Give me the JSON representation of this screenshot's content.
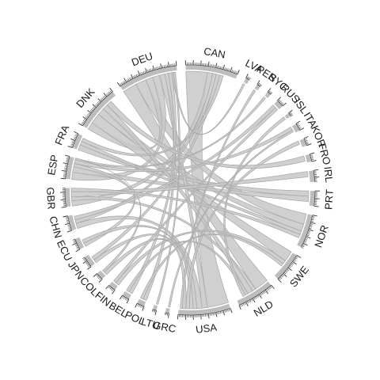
{
  "chart_data": {
    "type": "chord",
    "title": "",
    "colors": {
      "ribbon": "#c8c8c8",
      "ribbon_stroke": "#a6a6a6",
      "sector": "#bdbdbd",
      "tick": "#333333"
    },
    "nodes": [
      {
        "name": "CAN",
        "size": 14
      },
      {
        "name": "LVA",
        "size": 1
      },
      {
        "name": "PER",
        "size": 1
      },
      {
        "name": "SYC",
        "size": 1
      },
      {
        "name": "RUS",
        "size": 2
      },
      {
        "name": "ISL",
        "size": 1
      },
      {
        "name": "ITA",
        "size": 2
      },
      {
        "name": "KOR",
        "size": 2
      },
      {
        "name": "FRO",
        "size": 2
      },
      {
        "name": "IRL",
        "size": 3
      },
      {
        "name": "PRT",
        "size": 4
      },
      {
        "name": "NOR",
        "size": 9
      },
      {
        "name": "SWE",
        "size": 8
      },
      {
        "name": "NLD",
        "size": 10
      },
      {
        "name": "USA",
        "size": 14
      },
      {
        "name": "GRC",
        "size": 1
      },
      {
        "name": "LTU",
        "size": 1
      },
      {
        "name": "POL",
        "size": 2
      },
      {
        "name": "BEL",
        "size": 2
      },
      {
        "name": "FIN",
        "size": 2
      },
      {
        "name": "COL",
        "size": 2
      },
      {
        "name": "JPN",
        "size": 3
      },
      {
        "name": "ECU",
        "size": 3
      },
      {
        "name": "CHN",
        "size": 4
      },
      {
        "name": "GBR",
        "size": 5
      },
      {
        "name": "ESP",
        "size": 6
      },
      {
        "name": "FRA",
        "size": 4
      },
      {
        "name": "DNK",
        "size": 12
      },
      {
        "name": "DEU",
        "size": 16
      }
    ],
    "links": [
      {
        "source": "CAN",
        "target": "USA",
        "value": 6
      },
      {
        "source": "DEU",
        "target": "NLD",
        "value": 4
      },
      {
        "source": "DEU",
        "target": "NOR",
        "value": 3
      },
      {
        "source": "DEU",
        "target": "DNK",
        "value": 2
      },
      {
        "source": "DNK",
        "target": "SWE",
        "value": 3
      },
      {
        "source": "DNK",
        "target": "NOR",
        "value": 2
      },
      {
        "source": "DEU",
        "target": "ESP",
        "value": 2
      },
      {
        "source": "FRA",
        "target": "PRT",
        "value": 1.5
      },
      {
        "source": "ESP",
        "target": "PRT",
        "value": 1.5
      },
      {
        "source": "CAN",
        "target": "GBR",
        "value": 1.5
      },
      {
        "source": "DEU",
        "target": "USA",
        "value": 1.5
      },
      {
        "source": "NLD",
        "target": "GBR",
        "value": 1
      },
      {
        "source": "CHN",
        "target": "USA",
        "value": 1.5
      },
      {
        "source": "CAN",
        "target": "CHN",
        "value": 1
      },
      {
        "source": "DNK",
        "target": "NLD",
        "value": 1.5
      },
      {
        "source": "DEU",
        "target": "POL",
        "value": 1
      },
      {
        "source": "ESP",
        "target": "ECU",
        "value": 1
      },
      {
        "source": "ECU",
        "target": "USA",
        "value": 1
      },
      {
        "source": "JPN",
        "target": "USA",
        "value": 1
      },
      {
        "source": "JPN",
        "target": "CAN",
        "value": 1
      },
      {
        "source": "NOR",
        "target": "FRA",
        "value": 1
      },
      {
        "source": "SWE",
        "target": "FIN",
        "value": 1
      },
      {
        "source": "DEU",
        "target": "BEL",
        "value": 1
      },
      {
        "source": "NLD",
        "target": "BEL",
        "value": 0.8
      },
      {
        "source": "KOR",
        "target": "USA",
        "value": 1
      },
      {
        "source": "ITA",
        "target": "ESP",
        "value": 1
      },
      {
        "source": "COL",
        "target": "USA",
        "value": 1
      },
      {
        "source": "RUS",
        "target": "CHN",
        "value": 1
      },
      {
        "source": "IRL",
        "target": "GBR",
        "value": 1.5
      },
      {
        "source": "FRO",
        "target": "DNK",
        "value": 1.5
      },
      {
        "source": "ISL",
        "target": "NLD",
        "value": 0.8
      },
      {
        "source": "SYC",
        "target": "ESP",
        "value": 0.6
      },
      {
        "source": "PER",
        "target": "USA",
        "value": 0.6
      },
      {
        "source": "LVA",
        "target": "DEU",
        "value": 0.5
      },
      {
        "source": "GRC",
        "target": "ITA",
        "value": 0.5
      },
      {
        "source": "LTU",
        "target": "DEU",
        "value": 0.5
      },
      {
        "source": "POL",
        "target": "SWE",
        "value": 0.8
      },
      {
        "source": "FIN",
        "target": "RUS",
        "value": 0.8
      },
      {
        "source": "COL",
        "target": "ESP",
        "value": 0.6
      },
      {
        "source": "GBR",
        "target": "NOR",
        "value": 1
      },
      {
        "source": "FRA",
        "target": "CAN",
        "value": 1
      }
    ]
  }
}
